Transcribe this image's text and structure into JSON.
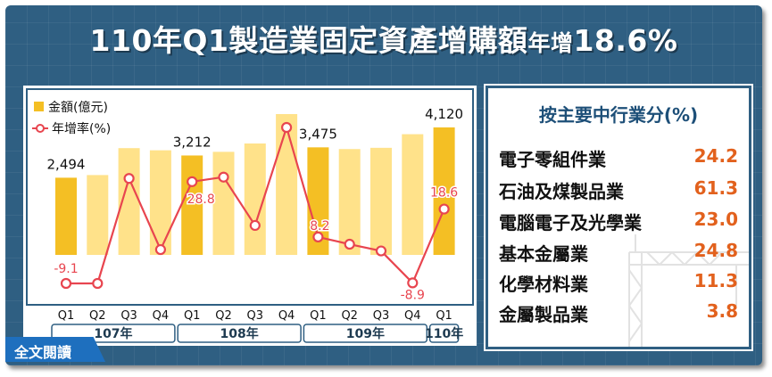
{
  "title": {
    "main": "110年Q1製造業固定資產增購額",
    "suffix_small": "年增",
    "suffix_value": "18.6%"
  },
  "legend": {
    "bar": "金額(億元)",
    "line": "年增率(%)"
  },
  "chart_data": {
    "type": "bar",
    "categories": [
      "Q1",
      "Q2",
      "Q3",
      "Q4",
      "Q1",
      "Q2",
      "Q3",
      "Q4",
      "Q1",
      "Q2",
      "Q3",
      "Q4",
      "Q1"
    ],
    "groups": [
      {
        "label": "107年",
        "count": 4
      },
      {
        "label": "108年",
        "count": 4
      },
      {
        "label": "109年",
        "count": 4
      },
      {
        "label": "110年",
        "count": 1
      }
    ],
    "series": [
      {
        "name": "金額(億元)",
        "type": "bar",
        "values": [
          2494,
          2580,
          3450,
          3380,
          3212,
          3330,
          3600,
          4550,
          3475,
          3420,
          3460,
          3900,
          4120
        ],
        "labeled": [
          0,
          4,
          8,
          12
        ]
      },
      {
        "name": "年增率(%)",
        "type": "line",
        "values": [
          -9.1,
          -9.1,
          30.0,
          3.5,
          28.8,
          30.5,
          12.5,
          49.0,
          8.2,
          5.5,
          3.0,
          -8.9,
          18.6
        ],
        "labeled": [
          0,
          4,
          8,
          11,
          12
        ]
      }
    ],
    "bar_color": "#f4bf24",
    "bar_color_light": "#ffe28a",
    "line_color": "#e8454f"
  },
  "breakdown": {
    "title": "按主要中行業分(%)",
    "items": [
      {
        "label": "電子零組件業",
        "value": "24.2"
      },
      {
        "label": "石油及煤製品業",
        "value": "61.3"
      },
      {
        "label": "電腦電子及光學業",
        "value": "23.0"
      },
      {
        "label": "基本金屬業",
        "value": "24.8"
      },
      {
        "label": "化學材料業",
        "value": "11.3"
      },
      {
        "label": "金屬製品業",
        "value": "3.8"
      }
    ]
  },
  "read_more": "全文閱讀"
}
